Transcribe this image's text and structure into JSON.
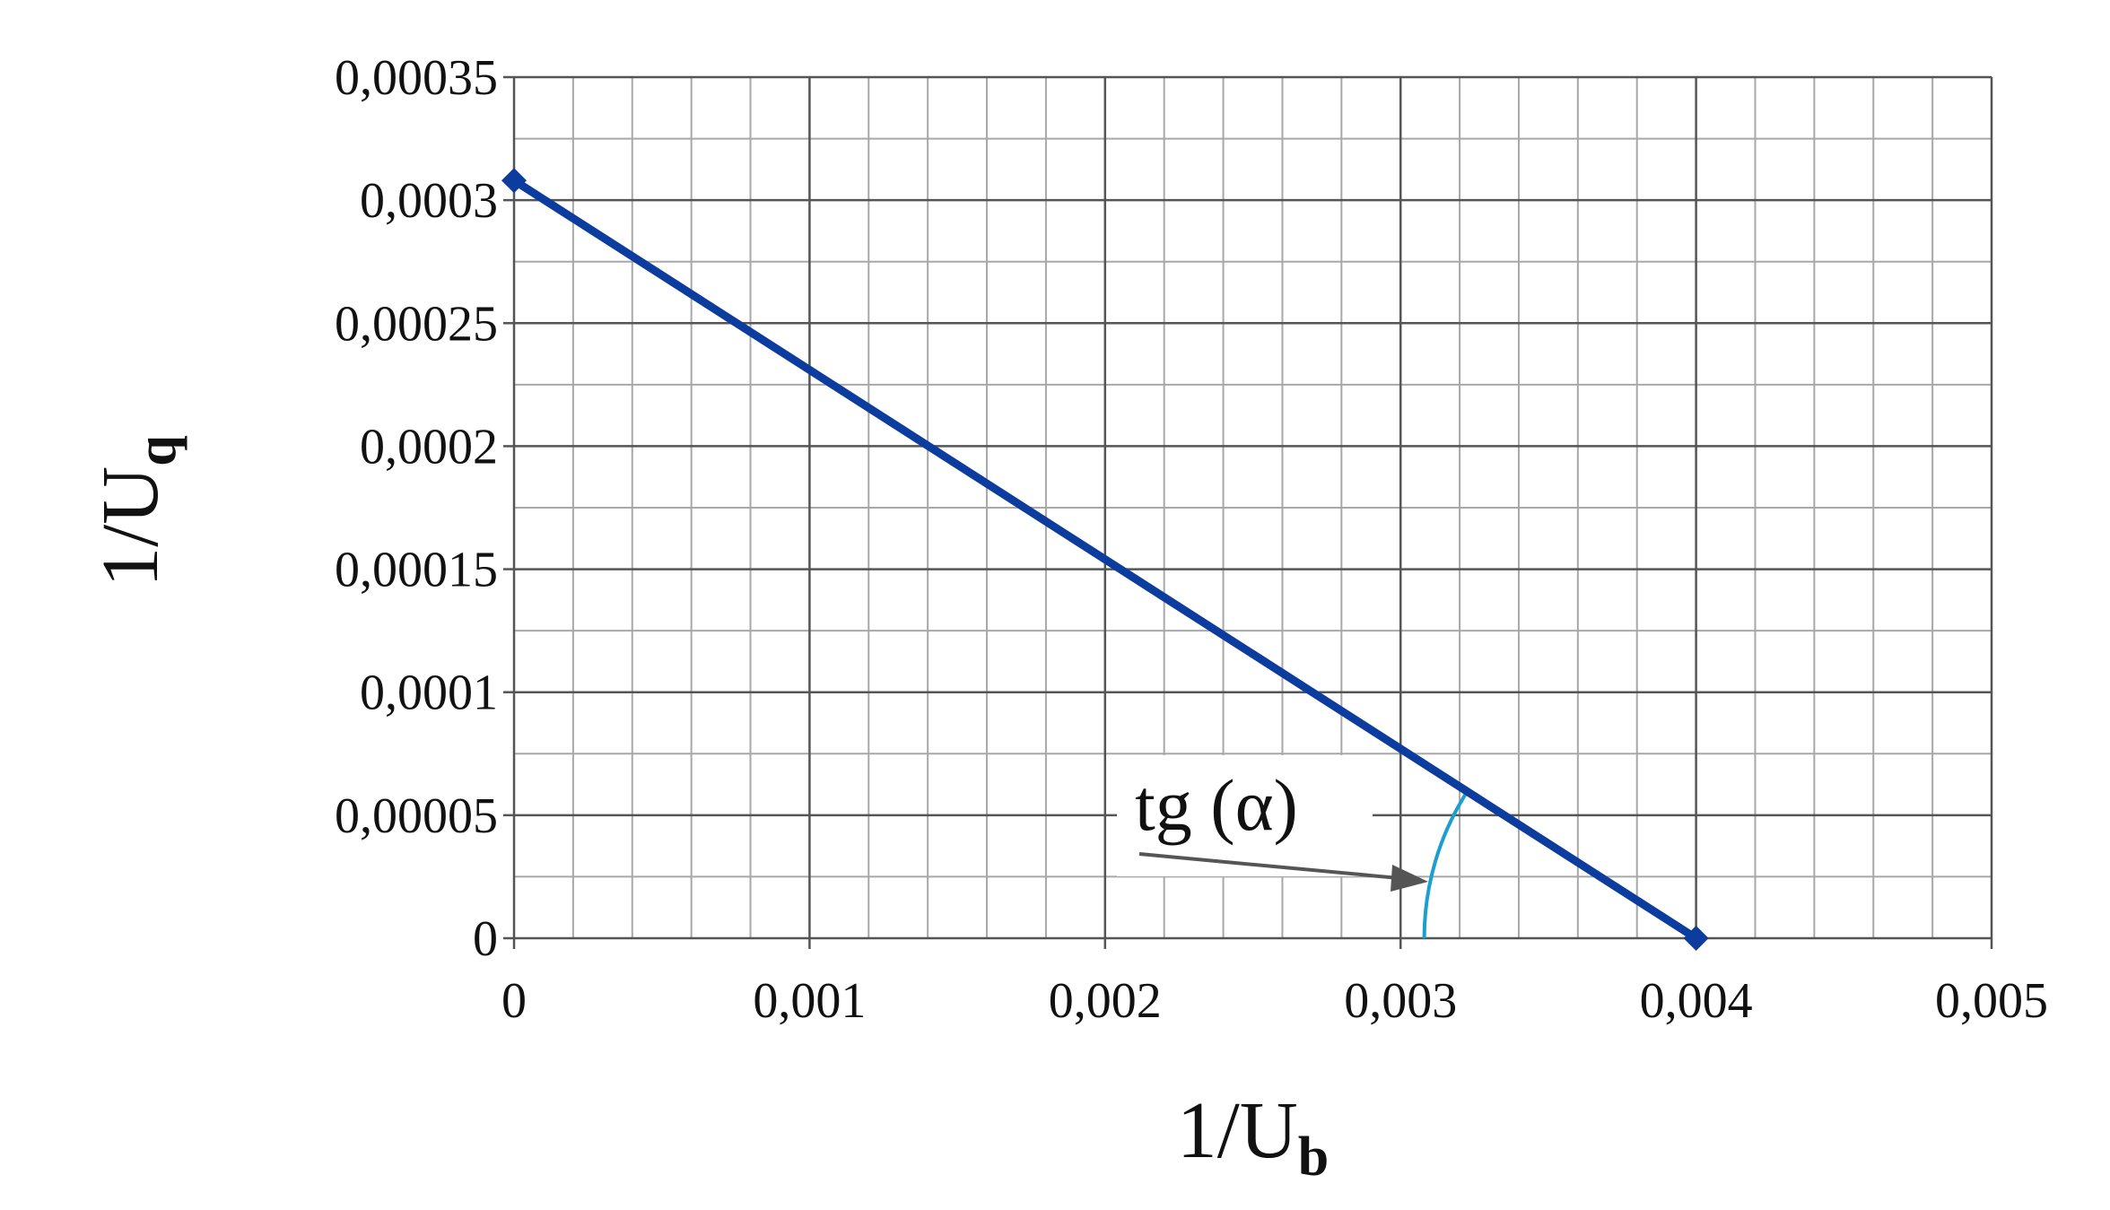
{
  "chart_data": {
    "type": "line",
    "x_label": {
      "text": "1/U",
      "sub": "b"
    },
    "y_label": {
      "text": "1/U",
      "sub": "q"
    },
    "x": [
      0,
      0.004
    ],
    "series": [
      {
        "values": [
          0.000308,
          0
        ],
        "color": "#0b3c9e"
      }
    ],
    "xlim": [
      0,
      0.005
    ],
    "ylim": [
      0,
      0.00035
    ],
    "xticks": [
      0,
      {
        "value": 0.001,
        "label": "0,001"
      },
      {
        "value": 0.002,
        "label": "0,002"
      },
      {
        "value": 0.003,
        "label": "0,003"
      },
      {
        "value": 0.004,
        "label": "0,004"
      },
      {
        "value": 0.005,
        "label": "0,005"
      }
    ],
    "yticks": [
      0,
      {
        "value": 5e-05,
        "label": "0,00005"
      },
      {
        "value": 0.0001,
        "label": "0,0001"
      },
      {
        "value": 0.00015,
        "label": "0,00015"
      },
      {
        "value": 0.0002,
        "label": "0,0002"
      },
      {
        "value": 0.00025,
        "label": "0,00025"
      },
      {
        "value": 0.0003,
        "label": "0,0003"
      },
      {
        "value": 0.00035,
        "label": "0,00035"
      }
    ],
    "grid": true,
    "minor_grid": {
      "x": 5,
      "y": 2
    },
    "annotation": "tg (α)",
    "annotation_color": "#1a9fd0"
  }
}
